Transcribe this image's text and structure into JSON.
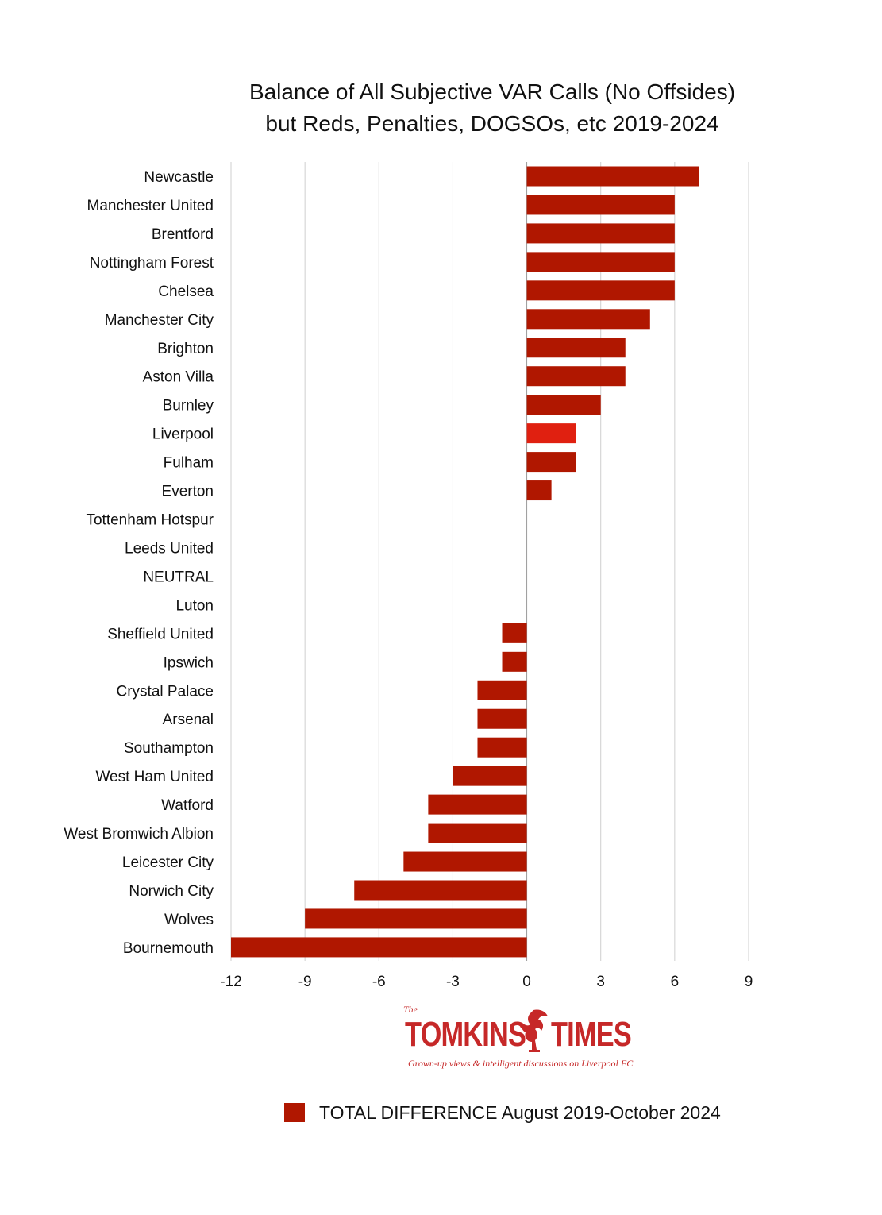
{
  "title": {
    "line1": "Balance of All Subjective VAR Calls (No Offsides)",
    "line2": "but Reds, Penalties, DOGSOs, etc 2019-2024"
  },
  "colors": {
    "bar": "#b01700",
    "highlight": "#e02010",
    "grid": "#cfcfcf"
  },
  "chart_data": {
    "type": "bar",
    "orientation": "horizontal",
    "categories": [
      "Newcastle",
      "Manchester United",
      "Brentford",
      "Nottingham Forest",
      "Chelsea",
      "Manchester City",
      "Brighton",
      "Aston Villa",
      "Burnley",
      "Liverpool",
      "Fulham",
      "Everton",
      "Tottenham Hotspur",
      "Leeds United",
      "NEUTRAL",
      "Luton",
      "Sheffield United",
      "Ipswich",
      "Crystal Palace",
      "Arsenal",
      "Southampton",
      "West Ham United",
      "Watford",
      "West Bromwich Albion",
      "Leicester City",
      "Norwich City",
      "Wolves",
      "Bournemouth"
    ],
    "series": [
      {
        "name": "TOTAL DIFFERENCE August 2019-October 2024",
        "values": [
          7,
          6,
          6,
          6,
          6,
          5,
          4,
          4,
          3,
          2,
          2,
          1,
          0,
          0,
          0,
          0,
          -1,
          -1,
          -2,
          -2,
          -2,
          -3,
          -4,
          -4,
          -5,
          -7,
          -9,
          -12
        ]
      }
    ],
    "highlight_category": "Liverpool",
    "xlim": [
      -12,
      9
    ],
    "xticks": [
      -12,
      -9,
      -6,
      -3,
      0,
      3,
      6,
      9
    ],
    "grid": true,
    "legend_position": "bottom"
  },
  "logo": {
    "the": "The",
    "word1": "TOMKINS",
    "word2": "TIMES",
    "tagline": "Grown-up views & intelligent discussions on Liverpool FC"
  }
}
